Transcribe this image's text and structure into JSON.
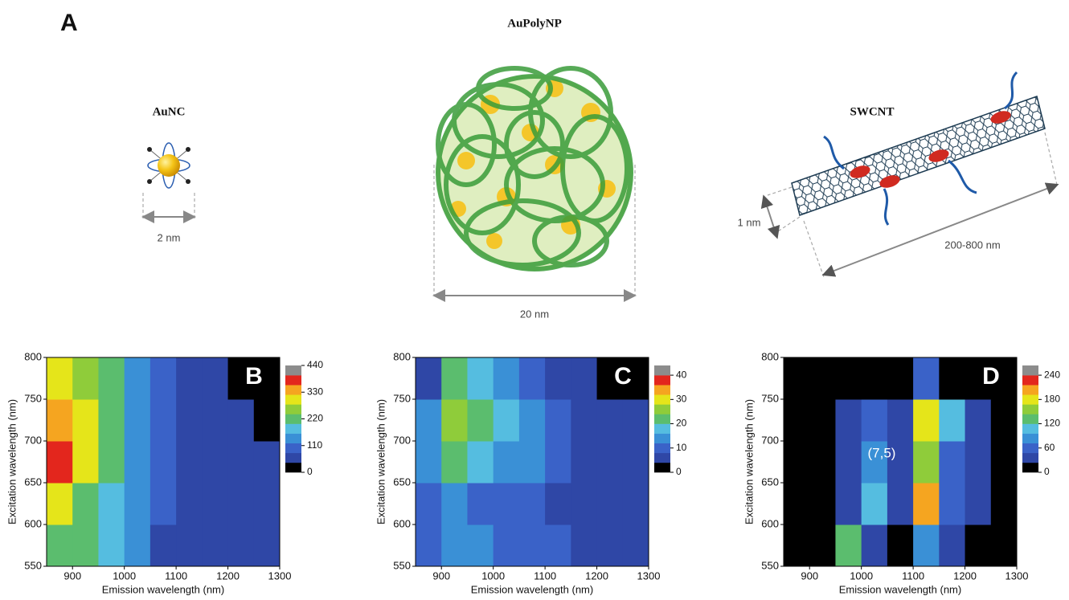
{
  "figure_label": "A",
  "illustrations": {
    "aunc": {
      "title": "AuNC",
      "size_label": "2 nm"
    },
    "aupolynp": {
      "title": "AuPolyNP",
      "size_label": "20 nm"
    },
    "swcnt": {
      "title": "SWCNT",
      "diameter_label": "1 nm",
      "length_label": "200-800 nm"
    }
  },
  "chart_data": [
    {
      "type": "heatmap",
      "panel_label": "B",
      "x_label": "Emission wavelength (nm)",
      "y_label": "Excitation wavelength (nm)",
      "xlim": [
        850,
        1300
      ],
      "ylim": [
        550,
        800
      ],
      "xticks": [
        900,
        1000,
        1100,
        1200,
        1300
      ],
      "yticks": [
        550,
        600,
        650,
        700,
        750,
        800
      ],
      "xbins": [
        850,
        900,
        950,
        1000,
        1050,
        1100,
        1150,
        1200,
        1250,
        1300
      ],
      "ybins": [
        550,
        600,
        650,
        700,
        750,
        800
      ],
      "z": [
        [
          230,
          200,
          170,
          120,
          70,
          55,
          55,
          55,
          55
        ],
        [
          280,
          230,
          190,
          130,
          80,
          55,
          55,
          55,
          55
        ],
        [
          390,
          300,
          200,
          140,
          90,
          55,
          55,
          55,
          50
        ],
        [
          340,
          310,
          210,
          140,
          90,
          55,
          55,
          50,
          30
        ],
        [
          300,
          270,
          200,
          140,
          90,
          55,
          55,
          30,
          20
        ]
      ],
      "zlim": [
        0,
        440
      ],
      "zticks": [
        0,
        110,
        220,
        330,
        440
      ],
      "colors": [
        "#000000",
        "#2f47a6",
        "#3a62c8",
        "#3a90d6",
        "#55bde0",
        "#5bbd6e",
        "#8fcc3a",
        "#e5e51a",
        "#f5a520",
        "#e3261d",
        "#8c8c8c"
      ]
    },
    {
      "type": "heatmap",
      "panel_label": "C",
      "x_label": "Emission wavelength (nm)",
      "y_label": "Excitation wavelength (nm)",
      "xlim": [
        850,
        1300
      ],
      "ylim": [
        550,
        800
      ],
      "xticks": [
        900,
        1000,
        1100,
        1200,
        1300
      ],
      "yticks": [
        550,
        600,
        650,
        700,
        750,
        800
      ],
      "xbins": [
        850,
        900,
        950,
        1000,
        1050,
        1100,
        1150,
        1200,
        1250,
        1300
      ],
      "ybins": [
        550,
        600,
        650,
        700,
        750,
        800
      ],
      "z": [
        [
          8,
          15,
          12,
          10,
          9,
          8,
          5,
          5,
          5
        ],
        [
          8,
          12,
          11,
          10,
          9,
          7,
          5,
          5,
          5
        ],
        [
          12,
          22,
          18,
          15,
          12,
          8,
          5,
          5,
          5
        ],
        [
          15,
          27,
          20,
          17,
          12,
          8,
          5,
          5,
          4
        ],
        [
          5,
          20,
          17,
          13,
          10,
          6,
          5,
          3,
          2
        ]
      ],
      "zlim": [
        0,
        44
      ],
      "zticks": [
        0,
        10,
        20,
        30,
        40
      ],
      "colors": [
        "#000000",
        "#2f47a6",
        "#3a62c8",
        "#3a90d6",
        "#55bde0",
        "#5bbd6e",
        "#8fcc3a",
        "#e5e51a",
        "#f5a520",
        "#e3261d",
        "#8c8c8c"
      ]
    },
    {
      "type": "heatmap",
      "panel_label": "D",
      "x_label": "Emission wavelength (nm)",
      "y_label": "Excitation wavelength (nm)",
      "annotation": "(7,5)",
      "xlim": [
        850,
        1300
      ],
      "ylim": [
        550,
        800
      ],
      "xticks": [
        900,
        1000,
        1100,
        1200,
        1300
      ],
      "yticks": [
        550,
        600,
        650,
        700,
        750,
        800
      ],
      "xbins": [
        850,
        900,
        950,
        1000,
        1050,
        1100,
        1150,
        1200,
        1250,
        1300
      ],
      "ybins": [
        550,
        600,
        650,
        700,
        750,
        800
      ],
      "z": [
        [
          0,
          0,
          140,
          40,
          20,
          90,
          40,
          20,
          20
        ],
        [
          0,
          0,
          40,
          110,
          30,
          200,
          60,
          25,
          20
        ],
        [
          0,
          0,
          30,
          80,
          25,
          160,
          60,
          25,
          20
        ],
        [
          0,
          0,
          25,
          60,
          30,
          180,
          100,
          25,
          20
        ],
        [
          0,
          0,
          20,
          20,
          20,
          60,
          20,
          20,
          20
        ]
      ],
      "zlim": [
        0,
        264
      ],
      "zticks": [
        0,
        60,
        120,
        180,
        240
      ],
      "colors": [
        "#000000",
        "#2f47a6",
        "#3a62c8",
        "#3a90d6",
        "#55bde0",
        "#5bbd6e",
        "#8fcc3a",
        "#e5e51a",
        "#f5a520",
        "#e3261d",
        "#8c8c8c"
      ]
    }
  ]
}
